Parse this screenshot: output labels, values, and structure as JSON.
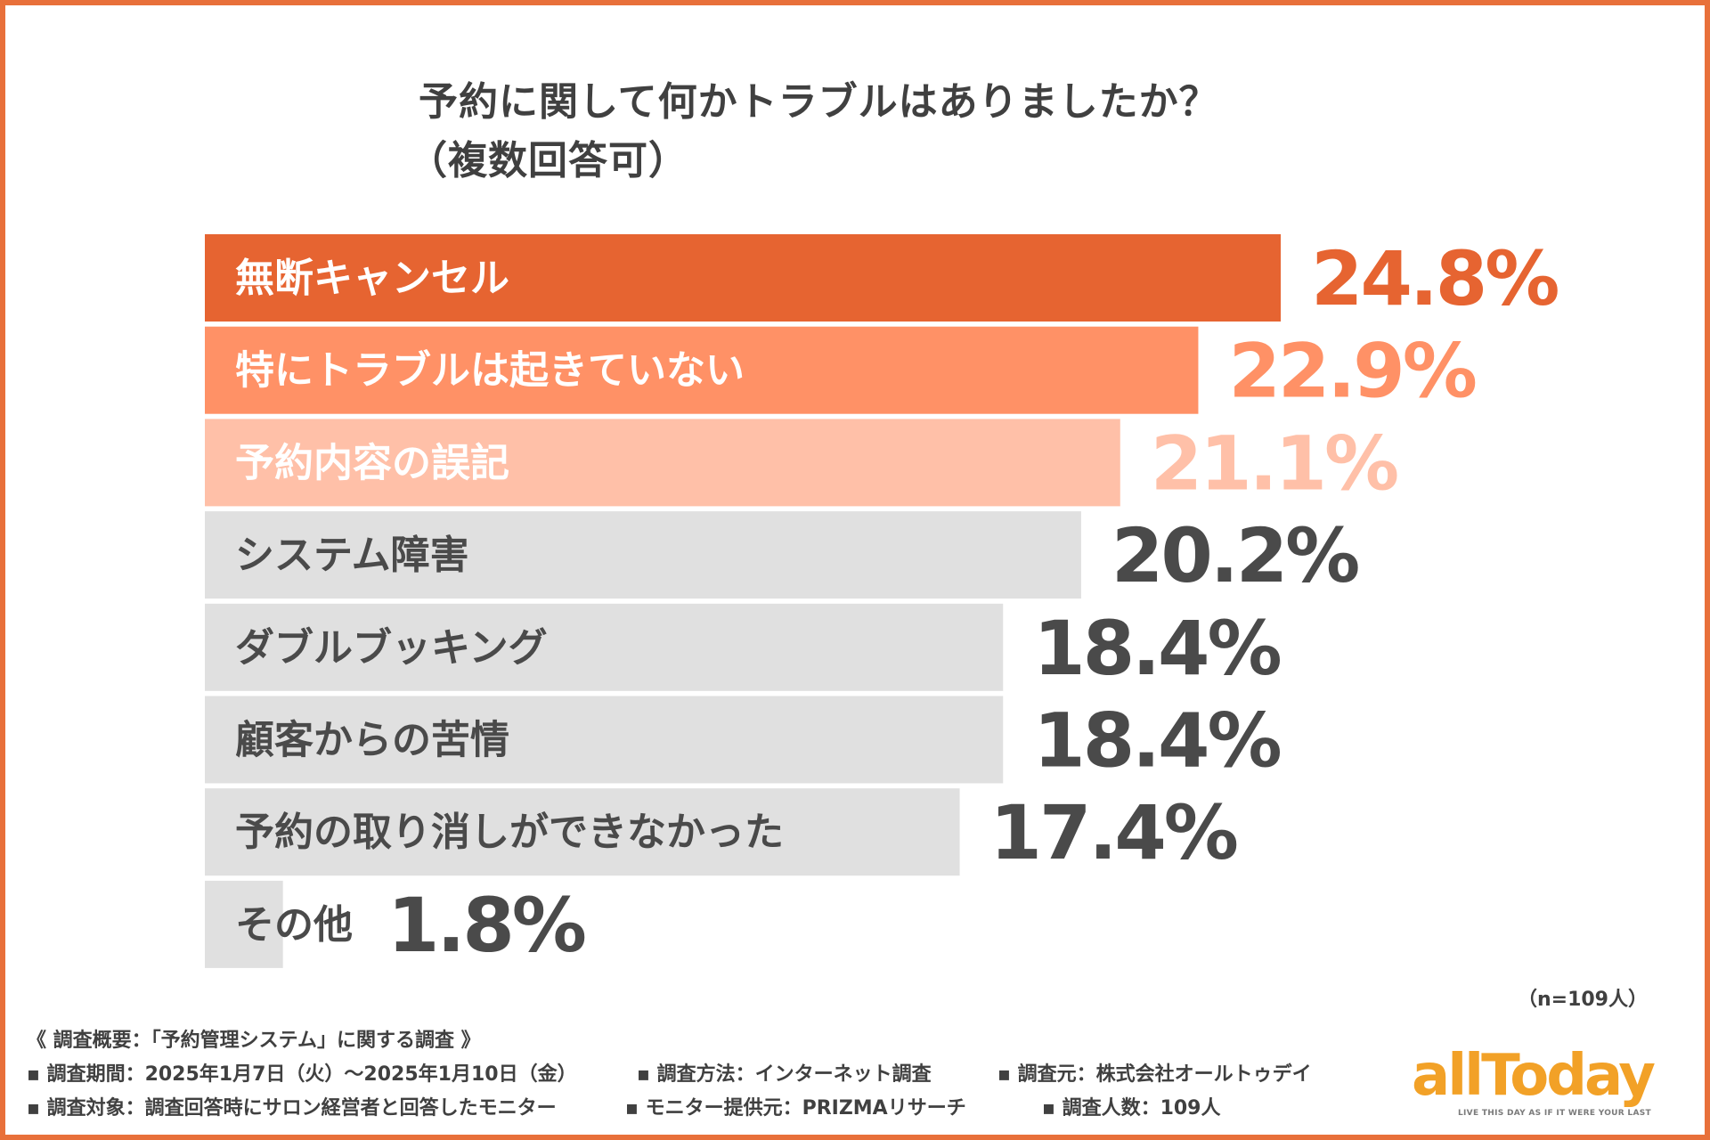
{
  "chart_data": {
    "type": "bar",
    "orientation": "horizontal",
    "title": "予約に関して何かトラブルはありましたか？",
    "subtitle": "（複数回答可）",
    "categories": [
      "無断キャンセル",
      "特にトラブルは起きていない",
      "予約内容の誤記",
      "システム障害",
      "ダブルブッキング",
      "顧客からの苦情",
      "予約の取り消しができなかった",
      "その他"
    ],
    "values": [
      24.8,
      22.9,
      21.1,
      20.2,
      18.4,
      18.4,
      17.4,
      1.8
    ],
    "value_labels": [
      "24.8%",
      "22.9%",
      "21.1%",
      "20.2%",
      "18.4%",
      "18.4%",
      "17.4%",
      "1.8%"
    ],
    "unit": "%",
    "xlim": [
      0,
      24.8
    ],
    "bar_colors": [
      "#e66431",
      "#ff9166",
      "#ffc0a8",
      "#e0e0e0",
      "#e0e0e0",
      "#e0e0e0",
      "#e0e0e0",
      "#e0e0e0"
    ],
    "bar_text_colors": [
      "#ffffff",
      "#ffffff",
      "#ffffff",
      "#4a4a4a",
      "#4a4a4a",
      "#4a4a4a",
      "#4a4a4a",
      "#4a4a4a"
    ],
    "value_colors": [
      "#e66431",
      "#ff9166",
      "#ffc0a8",
      "#4a4a4a",
      "#4a4a4a",
      "#4a4a4a",
      "#4a4a4a",
      "#4a4a4a"
    ],
    "sample_size": "（n=109人）"
  },
  "survey": {
    "heading": "《 調査概要：「予約管理システム」に関する調査 》",
    "period": "▪ 調査期間：2025年1月7日（火）～2025年1月10日（金）",
    "method": "▪ 調査方法：インターネット調査",
    "source": "▪ 調査元：株式会社オールトゥデイ",
    "target": "▪ 調査対象：調査回答時にサロン経営者と回答したモニター",
    "provider": "▪ モニター提供元：PRIZMAリサーチ",
    "count": "▪ 調査人数：109人"
  },
  "logo": {
    "name": "allToday",
    "tagline": "LIVE THIS DAY AS IF IT WERE YOUR LAST",
    "color": "#f2a127"
  },
  "frame_color": "#e8703a"
}
